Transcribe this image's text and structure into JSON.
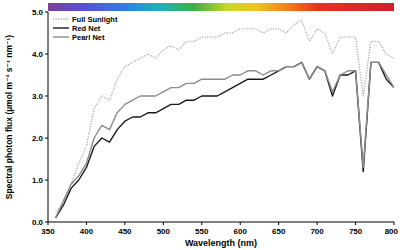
{
  "chart_data": {
    "type": "line",
    "x_label": "Wavelength (nm)",
    "y_label": "Spectral photon flux (µmol m⁻² s⁻¹ nm⁻¹)",
    "x": [
      350,
      360,
      370,
      380,
      390,
      400,
      410,
      420,
      430,
      440,
      450,
      460,
      470,
      480,
      490,
      500,
      510,
      520,
      530,
      540,
      550,
      560,
      570,
      580,
      590,
      600,
      610,
      620,
      630,
      640,
      650,
      660,
      670,
      680,
      690,
      700,
      710,
      720,
      730,
      740,
      750,
      760,
      770,
      780,
      790,
      800
    ],
    "series": [
      {
        "name": "Full Sunlight",
        "color": "#a8a8a8",
        "line_style": "dotted",
        "values": [
          null,
          0.2,
          0.5,
          0.9,
          1.4,
          1.8,
          2.7,
          3.0,
          2.9,
          3.4,
          3.7,
          3.8,
          3.9,
          4.0,
          3.9,
          4.1,
          4.2,
          4.1,
          4.3,
          4.3,
          4.4,
          4.4,
          4.4,
          4.5,
          4.5,
          4.6,
          4.6,
          4.6,
          4.5,
          4.6,
          4.6,
          4.5,
          4.7,
          4.8,
          4.3,
          4.6,
          4.5,
          4.0,
          4.4,
          4.4,
          4.4,
          3.0,
          4.3,
          4.3,
          4.0,
          3.9
        ]
      },
      {
        "name": "Red Net",
        "color": "#1a1a1a",
        "line_style": "solid",
        "values": [
          null,
          0.1,
          0.4,
          0.8,
          1.0,
          1.3,
          1.8,
          2.0,
          1.9,
          2.2,
          2.4,
          2.5,
          2.5,
          2.6,
          2.6,
          2.7,
          2.8,
          2.8,
          2.9,
          2.9,
          3.0,
          3.0,
          3.0,
          3.1,
          3.2,
          3.3,
          3.4,
          3.4,
          3.4,
          3.5,
          3.6,
          3.7,
          3.7,
          3.8,
          3.4,
          3.7,
          3.6,
          3.0,
          3.5,
          3.5,
          3.6,
          1.2,
          3.8,
          3.8,
          3.4,
          3.2
        ]
      },
      {
        "name": "Pearl Net",
        "color": "#8c8c8c",
        "line_style": "solid",
        "values": [
          null,
          0.1,
          0.5,
          0.9,
          1.1,
          1.4,
          2.0,
          2.3,
          2.2,
          2.6,
          2.8,
          2.9,
          3.0,
          3.0,
          3.0,
          3.1,
          3.2,
          3.2,
          3.3,
          3.3,
          3.4,
          3.4,
          3.4,
          3.4,
          3.5,
          3.5,
          3.6,
          3.6,
          3.5,
          3.6,
          3.6,
          3.7,
          3.7,
          3.8,
          3.4,
          3.7,
          3.6,
          3.1,
          3.5,
          3.6,
          3.6,
          1.3,
          3.8,
          3.8,
          3.5,
          3.2
        ]
      }
    ],
    "xlim": [
      350,
      800
    ],
    "xticks": [
      350,
      400,
      450,
      500,
      550,
      600,
      650,
      700,
      750,
      800
    ],
    "ylim": [
      0,
      5
    ],
    "yticks": [
      {
        "value": 0,
        "label": "0.0"
      },
      {
        "value": 1,
        "label": "1.0"
      },
      {
        "value": 2,
        "label": "2.0"
      },
      {
        "value": 3,
        "label": "3.0"
      },
      {
        "value": 4,
        "label": "4.0"
      },
      {
        "value": 5,
        "label": "5.0"
      }
    ],
    "grid": false,
    "legend": "upper left"
  }
}
